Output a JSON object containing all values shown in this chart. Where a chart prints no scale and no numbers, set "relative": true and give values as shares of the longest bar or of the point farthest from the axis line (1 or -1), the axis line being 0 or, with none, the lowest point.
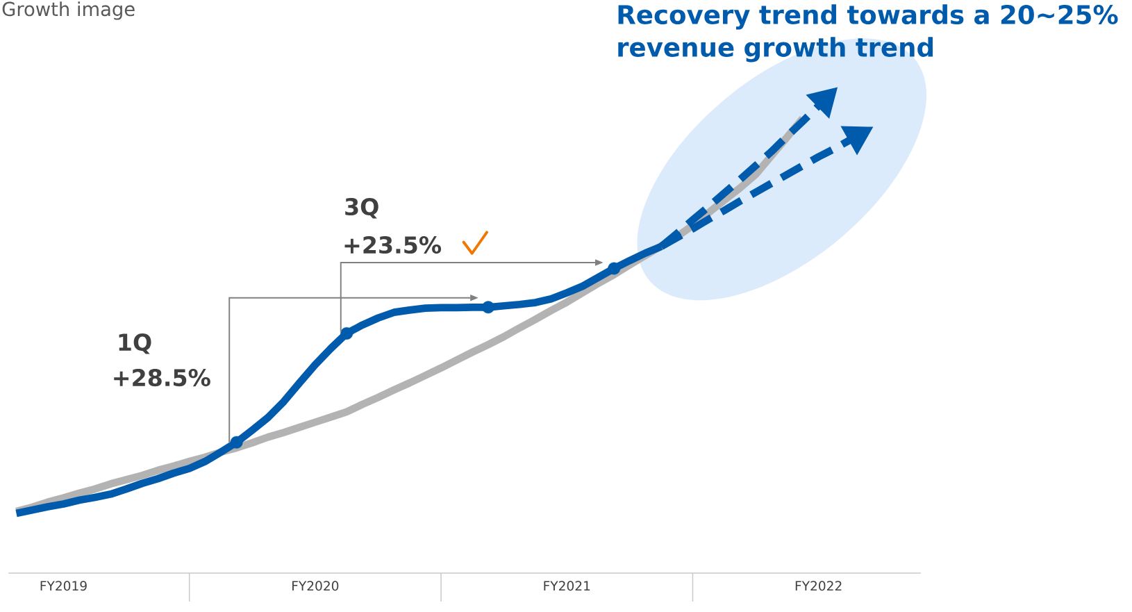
{
  "chart_data": {
    "type": "line",
    "title": "Growth image",
    "relative": true,
    "tick_labels": "x",
    "categories": [
      null,
      null,
      null,
      "FY2019",
      null,
      null,
      null,
      null,
      null,
      null,
      null,
      null,
      null,
      null,
      null,
      null,
      null,
      null,
      null,
      "FY2020",
      null,
      null,
      null,
      null,
      null,
      null,
      null,
      null,
      null,
      null,
      null,
      null,
      null,
      null,
      null,
      "FY2021",
      null,
      null,
      null,
      null,
      null,
      null,
      null,
      null,
      null,
      null,
      null,
      null,
      null,
      null,
      null,
      "FY2022",
      null,
      null,
      null,
      null,
      null,
      null
    ],
    "series": [
      {
        "color": "#b3b3b3",
        "values": [
          0.132,
          0.141,
          0.152,
          0.161,
          0.171,
          0.18,
          0.191,
          0.2,
          0.209,
          0.22,
          0.229,
          0.239,
          0.248,
          0.259,
          0.268,
          0.279,
          0.291,
          0.301,
          0.312,
          0.323,
          0.334,
          0.345,
          0.361,
          0.376,
          0.392,
          0.407,
          0.423,
          0.439,
          0.456,
          0.473,
          0.489,
          0.506,
          0.525,
          0.543,
          0.562,
          0.58,
          0.6,
          0.62,
          0.639,
          0.66,
          0.68,
          0.7,
          0.72,
          0.744,
          0.771,
          0.798,
          0.824,
          0.853,
          0.893,
          0.933,
          0.973,
          null,
          null,
          null,
          null,
          null,
          null,
          null
        ]
      },
      {
        "color": "#005bac",
        "values": [
          0.128,
          0.135,
          0.142,
          0.148,
          0.156,
          0.162,
          0.169,
          0.18,
          0.192,
          0.202,
          0.214,
          0.224,
          0.239,
          0.259,
          0.28,
          0.306,
          0.333,
          0.367,
          0.407,
          0.446,
          0.481,
          0.513,
          0.531,
          0.546,
          0.558,
          0.563,
          0.567,
          0.568,
          0.568,
          0.569,
          0.569,
          0.572,
          0.575,
          0.579,
          0.587,
          0.6,
          0.614,
          0.633,
          0.652,
          0.669,
          0.685,
          0.699,
          null,
          null,
          null,
          null,
          null,
          null,
          null,
          null,
          null,
          null,
          null,
          null,
          null,
          null,
          null,
          null
        ]
      },
      {
        "color": "#005bac",
        "line_style": "dashed",
        "values": [
          null,
          null,
          null,
          null,
          null,
          null,
          null,
          null,
          null,
          null,
          null,
          null,
          null,
          null,
          null,
          null,
          null,
          null,
          null,
          null,
          null,
          null,
          null,
          null,
          null,
          null,
          null,
          null,
          null,
          null,
          null,
          null,
          null,
          null,
          null,
          null,
          null,
          null,
          null,
          null,
          null,
          0.699,
          0.727,
          0.756,
          0.784,
          0.813,
          0.842,
          0.872,
          0.902,
          0.935,
          0.967,
          1.0,
          null,
          null,
          null,
          null,
          null,
          null
        ]
      },
      {
        "color": "#005bac",
        "line_style": "dashed",
        "values": [
          null,
          null,
          null,
          null,
          null,
          null,
          null,
          null,
          null,
          null,
          null,
          null,
          null,
          null,
          null,
          null,
          null,
          null,
          null,
          null,
          null,
          null,
          null,
          null,
          null,
          null,
          null,
          null,
          null,
          null,
          null,
          null,
          null,
          null,
          null,
          null,
          null,
          null,
          null,
          null,
          null,
          0.699,
          0.718,
          0.737,
          0.757,
          0.776,
          0.796,
          0.815,
          0.834,
          0.853,
          0.872,
          0.891,
          0.908,
          0.927,
          null,
          null,
          null,
          null
        ]
      },
      {
        "type": "scatter",
        "color": "#005bac",
        "marker": "circle",
        "values": [
          null,
          null,
          null,
          null,
          null,
          null,
          null,
          null,
          null,
          null,
          null,
          null,
          null,
          null,
          0.28,
          null,
          null,
          null,
          null,
          null,
          null,
          0.513,
          null,
          null,
          null,
          null,
          null,
          null,
          null,
          null,
          0.569,
          null,
          null,
          null,
          null,
          null,
          null,
          null,
          0.652,
          null,
          null,
          null,
          null,
          null,
          null,
          null,
          null,
          null,
          null,
          null,
          null,
          null,
          null,
          null,
          null,
          null,
          null,
          null
        ]
      }
    ],
    "annotations": [
      "1Q",
      "+28.5%",
      "3Q",
      "+23.5%",
      "Recovery trend towards a 20~25% revenue growth trend"
    ]
  }
}
